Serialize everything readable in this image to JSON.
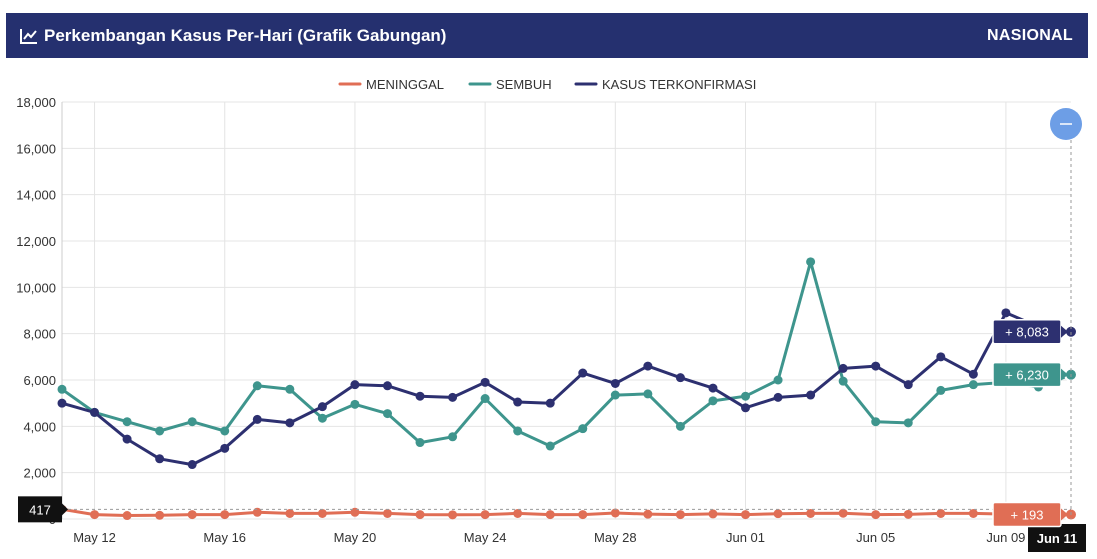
{
  "header": {
    "title": "Perkembangan Kasus Per-Hari (Grafik Gabungan)",
    "scope": "NASIONAL",
    "icon": "line-chart-icon"
  },
  "zoom_button": {
    "icon": "minus-icon"
  },
  "chart_data": {
    "type": "line",
    "x": [
      "May 11",
      "May 12",
      "May 13",
      "May 14",
      "May 15",
      "May 16",
      "May 17",
      "May 18",
      "May 19",
      "May 20",
      "May 21",
      "May 22",
      "May 23",
      "May 24",
      "May 25",
      "May 26",
      "May 27",
      "May 28",
      "May 29",
      "May 30",
      "May 31",
      "Jun 01",
      "Jun 02",
      "Jun 03",
      "Jun 04",
      "Jun 05",
      "Jun 06",
      "Jun 07",
      "Jun 08",
      "Jun 09",
      "Jun 10",
      "Jun 11"
    ],
    "x_tick_labels": [
      "May 12",
      "May 16",
      "May 20",
      "May 24",
      "May 28",
      "Jun 01",
      "Jun 05",
      "Jun 09"
    ],
    "series": [
      {
        "name": "MENINGGAL",
        "color": "#e06e55",
        "values": [
          417,
          190,
          150,
          160,
          190,
          190,
          290,
          240,
          240,
          290,
          240,
          190,
          180,
          190,
          240,
          190,
          190,
          260,
          210,
          190,
          220,
          190,
          230,
          240,
          250,
          190,
          200,
          240,
          240,
          210,
          210,
          193
        ]
      },
      {
        "name": "SEMBUH",
        "color": "#3e958d",
        "values": [
          5600,
          4600,
          4200,
          3800,
          4200,
          3800,
          5750,
          5600,
          4350,
          4950,
          4550,
          3300,
          3550,
          5200,
          3800,
          3150,
          3900,
          5350,
          5400,
          4000,
          5100,
          5300,
          6000,
          11100,
          5950,
          4200,
          4150,
          5550,
          5800,
          5900,
          5700,
          6230
        ]
      },
      {
        "name": "KASUS TERKONFIRMASI",
        "color": "#2d3070",
        "values": [
          5000,
          4600,
          3450,
          2600,
          2350,
          3050,
          4300,
          4150,
          4850,
          5800,
          5750,
          5300,
          5250,
          5900,
          5050,
          5000,
          6300,
          5850,
          6600,
          6100,
          5650,
          4800,
          5250,
          5350,
          6500,
          6600,
          5800,
          7000,
          6250,
          8900,
          8300,
          8083
        ]
      }
    ],
    "ylim": [
      0,
      18000
    ],
    "y_ticks": [
      0,
      2000,
      4000,
      6000,
      8000,
      10000,
      12000,
      14000,
      16000,
      18000
    ],
    "y_tick_labels": [
      "0",
      "2,000",
      "4,000",
      "6,000",
      "8,000",
      "10,000",
      "12,000",
      "14,000",
      "16,000",
      "18,000"
    ],
    "grid": true,
    "legend": "top-center",
    "crosshair": {
      "x_label": "Jun 11",
      "y_label": "417",
      "badges": [
        {
          "series": "KASUS TERKONFIRMASI",
          "text": "+ 8,083"
        },
        {
          "series": "SEMBUH",
          "text": "+ 6,230"
        },
        {
          "series": "MENINGGAL",
          "text": "+ 193"
        }
      ]
    }
  }
}
